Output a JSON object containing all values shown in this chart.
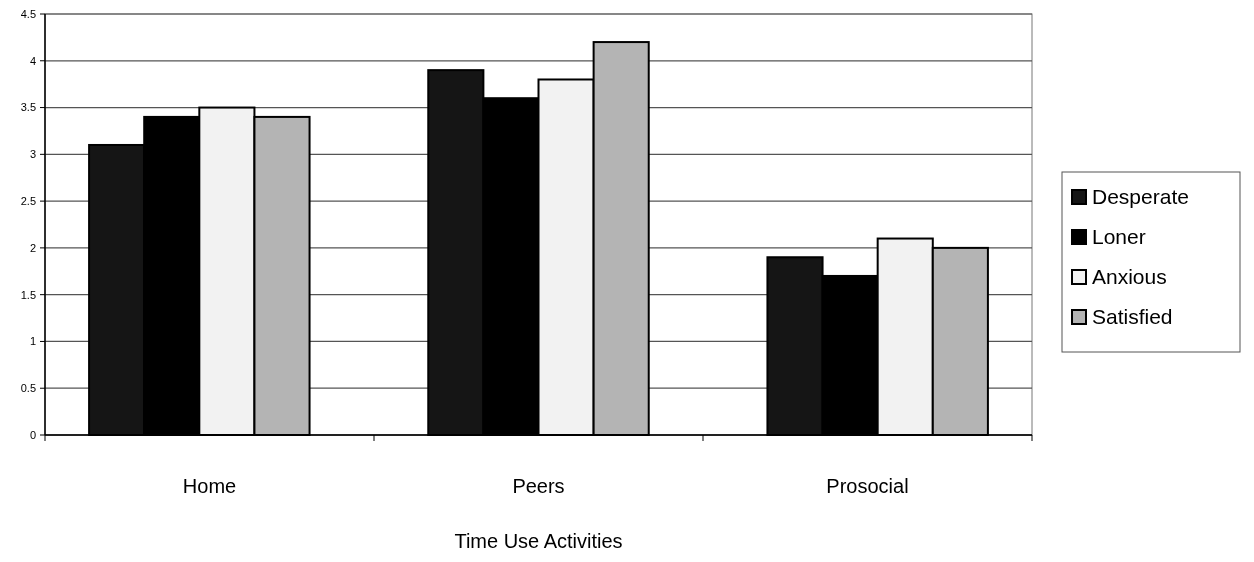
{
  "chart_data": {
    "type": "bar",
    "xlabel": "Time Use Activities",
    "categories": [
      "Home",
      "Peers",
      "Prosocial"
    ],
    "series": [
      {
        "name": "Desperate",
        "color": "#151515",
        "values": [
          3.1,
          3.9,
          1.9
        ]
      },
      {
        "name": "Loner",
        "color": "#000000",
        "values": [
          3.4,
          3.6,
          1.7
        ]
      },
      {
        "name": "Anxious",
        "color": "#f2f2f2",
        "values": [
          3.5,
          3.8,
          2.1
        ]
      },
      {
        "name": "Satisfied",
        "color": "#b4b4b4",
        "values": [
          3.4,
          4.2,
          2.0
        ]
      }
    ],
    "ylim": [
      0,
      4.5
    ],
    "yticks": [
      0,
      0.5,
      1,
      1.5,
      2,
      2.5,
      3,
      3.5,
      4,
      4.5
    ],
    "grid": "y",
    "legend": "right"
  }
}
